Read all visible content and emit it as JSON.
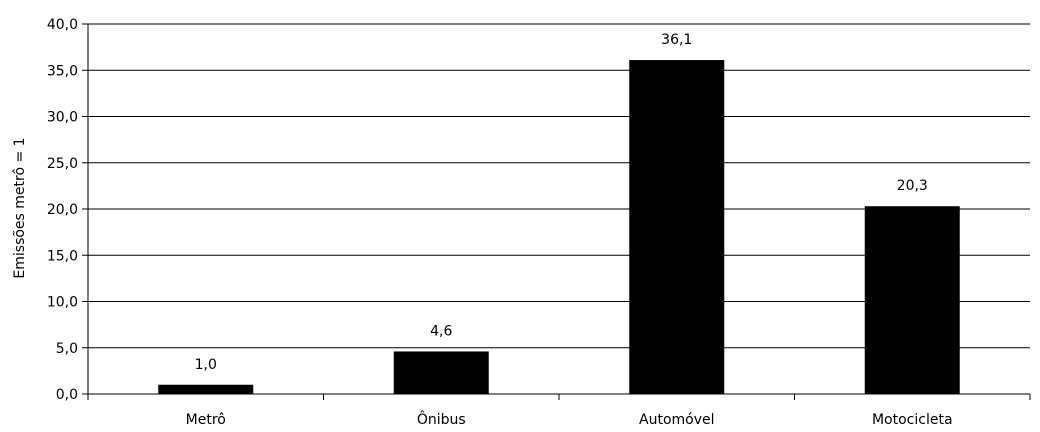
{
  "chart_data": {
    "type": "bar",
    "categories": [
      "Metrô",
      "Ônibus",
      "Automóvel",
      "Motocicleta"
    ],
    "values": [
      1.0,
      4.6,
      36.1,
      20.3
    ],
    "value_labels": [
      "1,0",
      "4,6",
      "36,1",
      "20,3"
    ],
    "ylabel": "Emissões metrô = 1",
    "ylim": [
      0,
      40
    ],
    "yticks": [
      0,
      5,
      10,
      15,
      20,
      25,
      30,
      35,
      40
    ],
    "ytick_labels": [
      "0,0",
      "5,0",
      "10,0",
      "15,0",
      "20,0",
      "25,0",
      "30,0",
      "35,0",
      "40,0"
    ],
    "grid": true,
    "bar_color": "#000000",
    "grid_color": "#000000"
  }
}
